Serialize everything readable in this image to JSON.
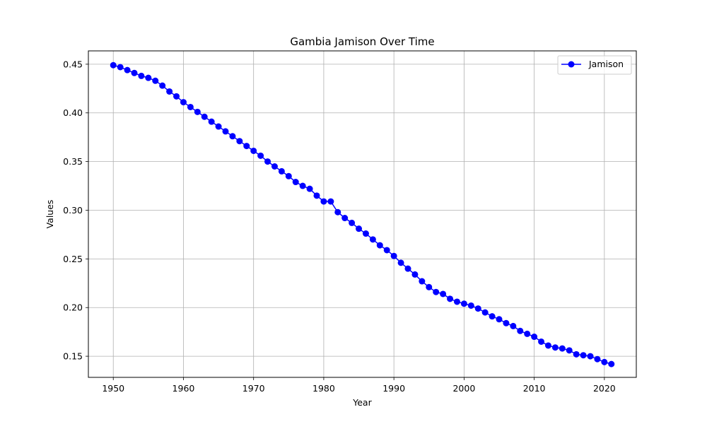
{
  "chart_data": {
    "type": "line",
    "title": "Gambia Jamison Over Time",
    "xlabel": "Year",
    "ylabel": "Values",
    "xlim": [
      1946.45,
      2024.55
    ],
    "ylim": [
      0.1283,
      0.4637
    ],
    "x_ticks": [
      1950,
      1960,
      1970,
      1980,
      1990,
      2000,
      2010,
      2020
    ],
    "y_ticks": [
      0.15,
      0.2,
      0.25,
      0.3,
      0.35,
      0.4,
      0.45
    ],
    "y_tick_labels": [
      "0.15",
      "0.20",
      "0.25",
      "0.30",
      "0.35",
      "0.40",
      "0.45"
    ],
    "grid": true,
    "legend_position": "top-right",
    "series": [
      {
        "name": "Jamison",
        "color": "#0000ff",
        "marker": "circle",
        "x": [
          1950,
          1951,
          1952,
          1953,
          1954,
          1955,
          1956,
          1957,
          1958,
          1959,
          1960,
          1961,
          1962,
          1963,
          1964,
          1965,
          1966,
          1967,
          1968,
          1969,
          1970,
          1971,
          1972,
          1973,
          1974,
          1975,
          1976,
          1977,
          1978,
          1979,
          1980,
          1981,
          1982,
          1983,
          1984,
          1985,
          1986,
          1987,
          1988,
          1989,
          1990,
          1991,
          1992,
          1993,
          1994,
          1995,
          1996,
          1997,
          1998,
          1999,
          2000,
          2001,
          2002,
          2003,
          2004,
          2005,
          2006,
          2007,
          2008,
          2009,
          2010,
          2011,
          2012,
          2013,
          2014,
          2015,
          2016,
          2017,
          2018,
          2019,
          2020,
          2021
        ],
        "values": [
          0.449,
          0.447,
          0.444,
          0.441,
          0.438,
          0.436,
          0.433,
          0.428,
          0.422,
          0.417,
          0.411,
          0.406,
          0.401,
          0.396,
          0.391,
          0.386,
          0.381,
          0.376,
          0.371,
          0.366,
          0.361,
          0.356,
          0.35,
          0.345,
          0.34,
          0.335,
          0.329,
          0.325,
          0.322,
          0.315,
          0.309,
          0.309,
          0.298,
          0.292,
          0.287,
          0.281,
          0.276,
          0.27,
          0.264,
          0.259,
          0.253,
          0.246,
          0.24,
          0.234,
          0.227,
          0.221,
          0.216,
          0.214,
          0.209,
          0.206,
          0.204,
          0.202,
          0.199,
          0.195,
          0.191,
          0.188,
          0.184,
          0.181,
          0.176,
          0.173,
          0.17,
          0.165,
          0.161,
          0.159,
          0.158,
          0.156,
          0.152,
          0.151,
          0.15,
          0.147,
          0.144,
          0.142
        ]
      }
    ]
  }
}
